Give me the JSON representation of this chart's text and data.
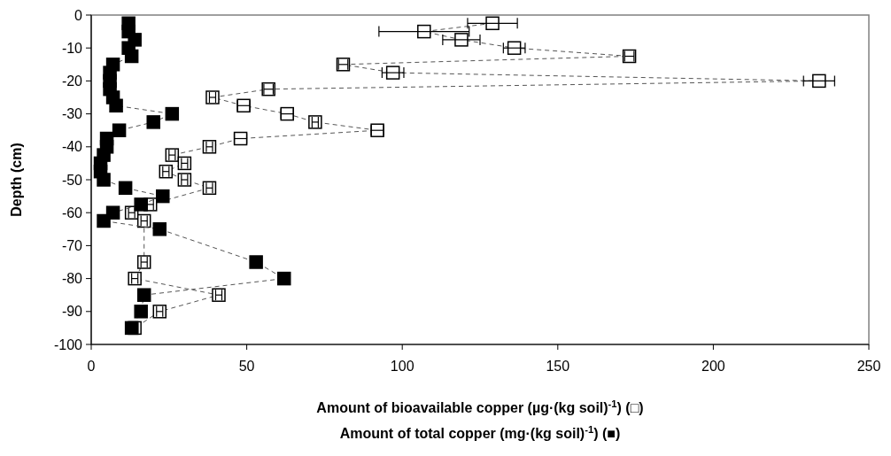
{
  "chart_data": {
    "type": "line",
    "xlabel": "Amount of bioavailable copper (µg·(kg soil)$^{-1}$) (□)\nAmount of total copper (mg·(kg soil)$^{-1}$) (■)",
    "ylabel": "Depth (cm)",
    "xlim": [
      0,
      250
    ],
    "xticks": [
      0,
      50,
      100,
      150,
      200,
      250
    ],
    "ylim": [
      -100,
      0
    ],
    "yticks": [
      0,
      -10,
      -20,
      -30,
      -40,
      -50,
      -60,
      -70,
      -80,
      -90,
      -100
    ],
    "grid": false,
    "marker": "square",
    "line_style": "dashed",
    "series": [
      {
        "color": "#ffffff",
        "x": [
          129,
          107,
          119,
          136,
          173,
          81,
          97,
          234,
          57,
          39,
          49,
          63,
          72,
          92,
          48,
          38,
          26,
          30,
          24,
          30,
          38,
          19,
          13,
          17,
          17,
          14,
          41,
          22,
          14
        ],
        "values": [
          -2.5,
          -5,
          -7.5,
          -10,
          -12.5,
          -15,
          -17.5,
          -20,
          -22.5,
          -25,
          -27.5,
          -30,
          -32.5,
          -35,
          -37.5,
          -40,
          -42.5,
          -45,
          -47.5,
          -50,
          -52.5,
          -57.5,
          -60,
          -62.5,
          -75,
          -80,
          -85,
          -90,
          -95
        ],
        "xerrors": [
          8,
          14.5,
          6,
          3.5,
          1.5,
          1.5,
          3.5,
          5,
          1.5,
          1,
          2,
          2,
          1,
          2,
          2,
          1,
          1,
          1,
          1,
          1,
          1,
          1,
          1,
          1,
          1,
          1,
          1,
          1,
          1
        ]
      },
      {
        "color": "#000000",
        "x": [
          12,
          12,
          14,
          12,
          13,
          7,
          6,
          6,
          6,
          7,
          8,
          26,
          20,
          9,
          5,
          5,
          4,
          3,
          3,
          4,
          11,
          23,
          16,
          7,
          4,
          22,
          53,
          62,
          17,
          16,
          13
        ],
        "values": [
          -2.5,
          -5,
          -7.5,
          -10,
          -12.5,
          -15,
          -17.5,
          -20,
          -22.5,
          -25,
          -27.5,
          -30,
          -32.5,
          -35,
          -37.5,
          -40,
          -42.5,
          -45,
          -47.5,
          -50,
          -52.5,
          -55,
          -57.5,
          -60,
          -62.5,
          -65,
          -75,
          -80,
          -85,
          -90,
          -95
        ]
      }
    ]
  }
}
